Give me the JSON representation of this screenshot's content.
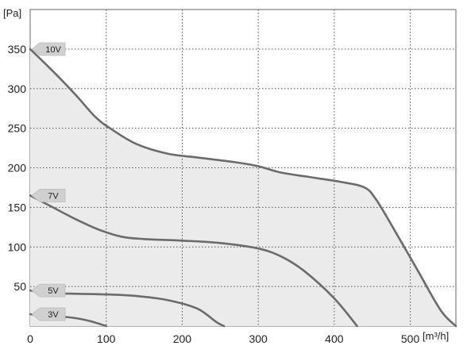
{
  "chart_data": {
    "type": "line",
    "title": "",
    "xlabel": "m³/h",
    "ylabel": "Pa",
    "xlabel_display": "[m³/h]",
    "ylabel_display": "[Pa]",
    "xlim": [
      0,
      560
    ],
    "ylim": [
      0,
      400
    ],
    "x_ticks": [
      0,
      100,
      200,
      300,
      400,
      500
    ],
    "y_ticks": [
      50,
      100,
      150,
      200,
      250,
      300,
      350
    ],
    "x_tick_labels": [
      "0",
      "100",
      "200",
      "300",
      "400",
      "500"
    ],
    "y_tick_labels": [
      "50",
      "100",
      "150",
      "200",
      "250",
      "300",
      "350"
    ],
    "grid": true,
    "fill_under_top_series": true,
    "colors": {
      "line": "#6b6b6b",
      "fill": "#ebebeb",
      "grid": "#555555",
      "label_bg": "#d0d0d0"
    },
    "series": [
      {
        "name": "10V",
        "x": [
          0,
          30,
          60,
          85,
          105,
          140,
          180,
          220,
          270,
          300,
          330,
          370,
          410,
          440,
          455,
          480,
          510,
          540,
          560
        ],
        "y": [
          350,
          322,
          292,
          265,
          250,
          230,
          218,
          213,
          207,
          202,
          194,
          188,
          182,
          175,
          160,
          120,
          70,
          20,
          0
        ]
      },
      {
        "name": "7V",
        "x": [
          0,
          30,
          60,
          90,
          120,
          150,
          200,
          250,
          300,
          330,
          360,
          400,
          430
        ],
        "y": [
          165,
          150,
          135,
          122,
          113,
          110,
          108,
          105,
          98,
          88,
          70,
          35,
          0
        ]
      },
      {
        "name": "5V",
        "x": [
          0,
          20,
          50,
          100,
          140,
          180,
          220,
          245,
          255
        ],
        "y": [
          45,
          42,
          41,
          40,
          38,
          33,
          22,
          5,
          0
        ]
      },
      {
        "name": "3V",
        "x": [
          0,
          20,
          40,
          60,
          80,
          100
        ],
        "y": [
          15,
          13,
          12,
          10,
          6,
          0
        ]
      }
    ]
  }
}
